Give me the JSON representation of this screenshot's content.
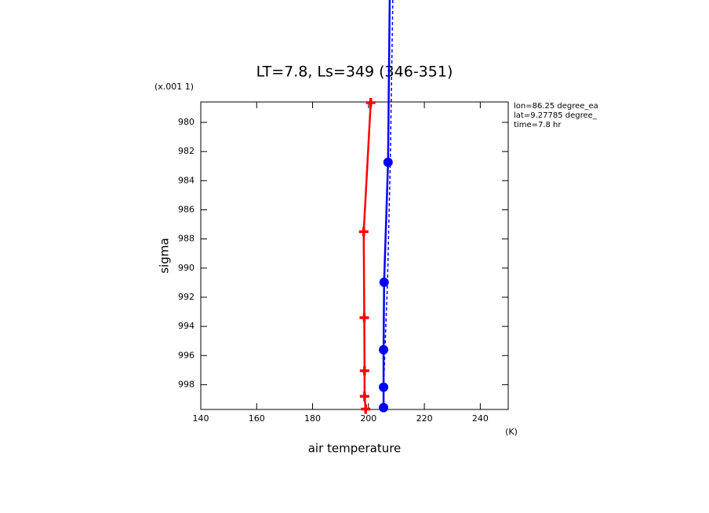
{
  "chart_data": {
    "type": "line",
    "title": "LT=7.8, Ls=349 (346-351)",
    "y_multiplier": "(x.001 1)",
    "x_label": "air temperature",
    "x_unit": "(K)",
    "y_label": "sigma",
    "info": [
      "lon=86.25 degree_ea",
      "lat=9.27785 degree_",
      "time=7.8 hr"
    ],
    "xlim": [
      140,
      250
    ],
    "ylim": [
      999.7,
      978.6
    ],
    "xticks": [
      140,
      160,
      180,
      200,
      220,
      240
    ],
    "yticks": [
      980,
      982,
      984,
      986,
      988,
      990,
      992,
      994,
      996,
      998
    ],
    "series": [
      {
        "color": "#ff0000",
        "marker": "plus",
        "dash": false,
        "x": [
          200.8,
          198.3,
          198.5,
          198.6,
          198.6,
          199.0
        ],
        "values": [
          978.65,
          987.5,
          993.4,
          997.04,
          998.8,
          999.67
        ]
      },
      {
        "color": "#0000ff",
        "marker": "circle",
        "dash": false,
        "x": [
          207.6,
          207.0,
          205.6,
          205.4,
          205.4,
          205.4
        ],
        "values": [
          971.6,
          982.74,
          990.97,
          995.6,
          998.17,
          999.57
        ]
      },
      {
        "color": "#0000ff",
        "marker": "none",
        "dash": true,
        "x": [
          208.7,
          207.8,
          206.8,
          205.9,
          205.4,
          205.4
        ],
        "values": [
          971.6,
          982.74,
          990.97,
          995.6,
          998.17,
          999.57
        ]
      }
    ]
  }
}
